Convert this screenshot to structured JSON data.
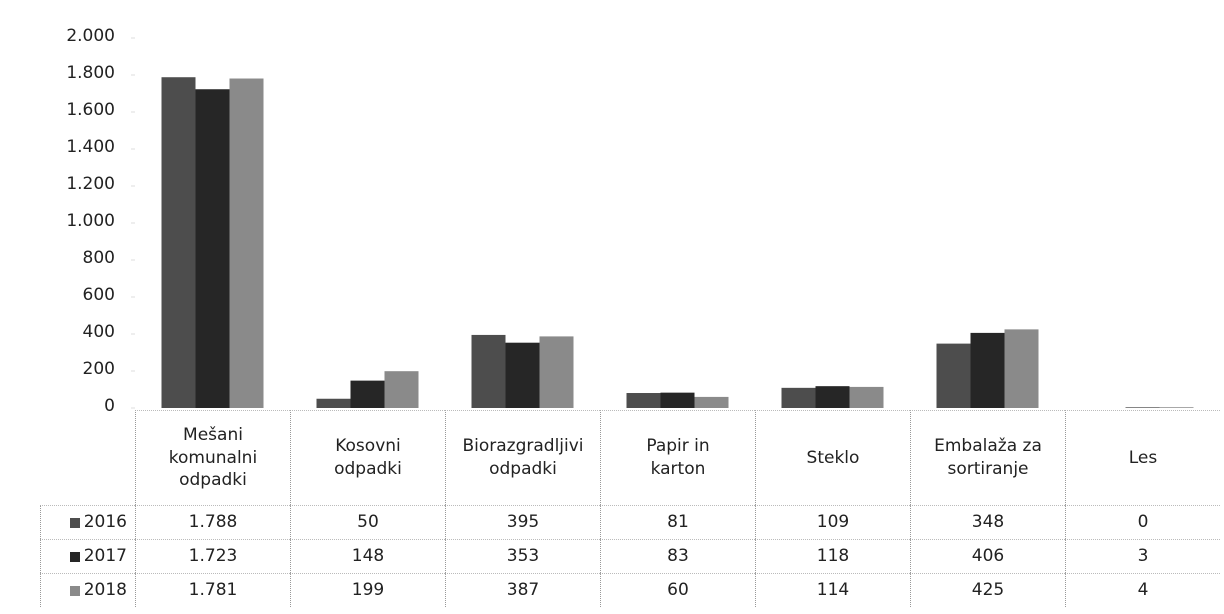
{
  "chart_data": {
    "type": "bar",
    "categories": [
      "Mešani komunalni odpadki",
      "Kosovni odpadki",
      "Biorazgradljivi odpadki",
      "Papir in karton",
      "Steklo",
      "Embalaža za sortiranje",
      "Les"
    ],
    "series": [
      {
        "name": "2016",
        "color": "#4d4d4d",
        "values": [
          1788,
          50,
          395,
          81,
          109,
          348,
          0
        ],
        "value_labels": [
          "1.788",
          "50",
          "395",
          "81",
          "109",
          "348",
          "0"
        ]
      },
      {
        "name": "2017",
        "color": "#262626",
        "values": [
          1723,
          148,
          353,
          83,
          118,
          406,
          3
        ],
        "value_labels": [
          "1.723",
          "148",
          "353",
          "83",
          "118",
          "406",
          "3"
        ]
      },
      {
        "name": "2018",
        "color": "#8a8a8a",
        "values": [
          1781,
          199,
          387,
          60,
          114,
          425,
          4
        ],
        "value_labels": [
          "1.781",
          "199",
          "387",
          "60",
          "114",
          "425",
          "4"
        ]
      }
    ],
    "ylim": [
      0,
      2000
    ],
    "yticks": [
      0,
      200,
      400,
      600,
      800,
      {
        "value": 1000,
        "label": "1.000"
      },
      {
        "value": 1200,
        "label": "1.200"
      },
      {
        "value": 1400,
        "label": "1.400"
      },
      {
        "value": 1600,
        "label": "1.600"
      },
      {
        "value": 1800,
        "label": "1.800"
      },
      {
        "value": 2000,
        "label": "2.000"
      }
    ],
    "grid": false
  }
}
